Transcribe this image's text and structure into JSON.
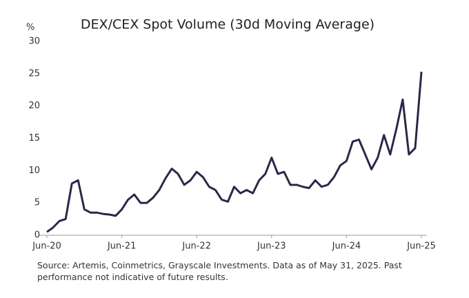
{
  "chart_data": {
    "type": "line",
    "title": "DEX/CEX Spot Volume (30d Moving Average)",
    "y_label": "%",
    "categories": [
      "Jun-20",
      null,
      null,
      null,
      null,
      null,
      null,
      null,
      null,
      null,
      null,
      null,
      "Jun-21",
      null,
      null,
      null,
      null,
      null,
      null,
      null,
      null,
      null,
      null,
      null,
      "Jun-22",
      null,
      null,
      null,
      null,
      null,
      null,
      null,
      null,
      null,
      null,
      null,
      "Jun-23",
      null,
      null,
      null,
      null,
      null,
      null,
      null,
      null,
      null,
      null,
      null,
      "Jun-24",
      null,
      null,
      null,
      null,
      null,
      null,
      null,
      null,
      null,
      null,
      null,
      "Jun-25"
    ],
    "series": [
      {
        "name": "DEX/CEX",
        "color": "#2b2748",
        "values": [
          0.5,
          1.2,
          2.2,
          2.5,
          8,
          8.5,
          4,
          3.5,
          3.5,
          3.3,
          3.2,
          3.0,
          4.0,
          5.5,
          6.3,
          5.0,
          5.0,
          5.8,
          7.0,
          8.8,
          10.3,
          9.5,
          7.8,
          8.5,
          9.8,
          9.0,
          7.5,
          7.0,
          5.5,
          5.2,
          7.5,
          6.5,
          7.0,
          6.5,
          8.5,
          9.5,
          12.0,
          9.5,
          9.8,
          7.8,
          7.8,
          7.5,
          7.3,
          8.5,
          7.5,
          7.8,
          9.0,
          10.8,
          11.5,
          14.5,
          14.8,
          12.5,
          10.2,
          12.0,
          15.5,
          12.5,
          16.5,
          21.0,
          12.5,
          13.5,
          25.3
        ]
      }
    ],
    "ylim": [
      0,
      30
    ],
    "yticks": [
      0,
      5,
      10,
      15,
      20,
      25,
      30
    ],
    "grid": false,
    "source": [
      "Source: Artemis, Coinmetrics, Grayscale Investments. Data as of May 31, 2025. Past",
      "performance not indicative of future results."
    ]
  }
}
